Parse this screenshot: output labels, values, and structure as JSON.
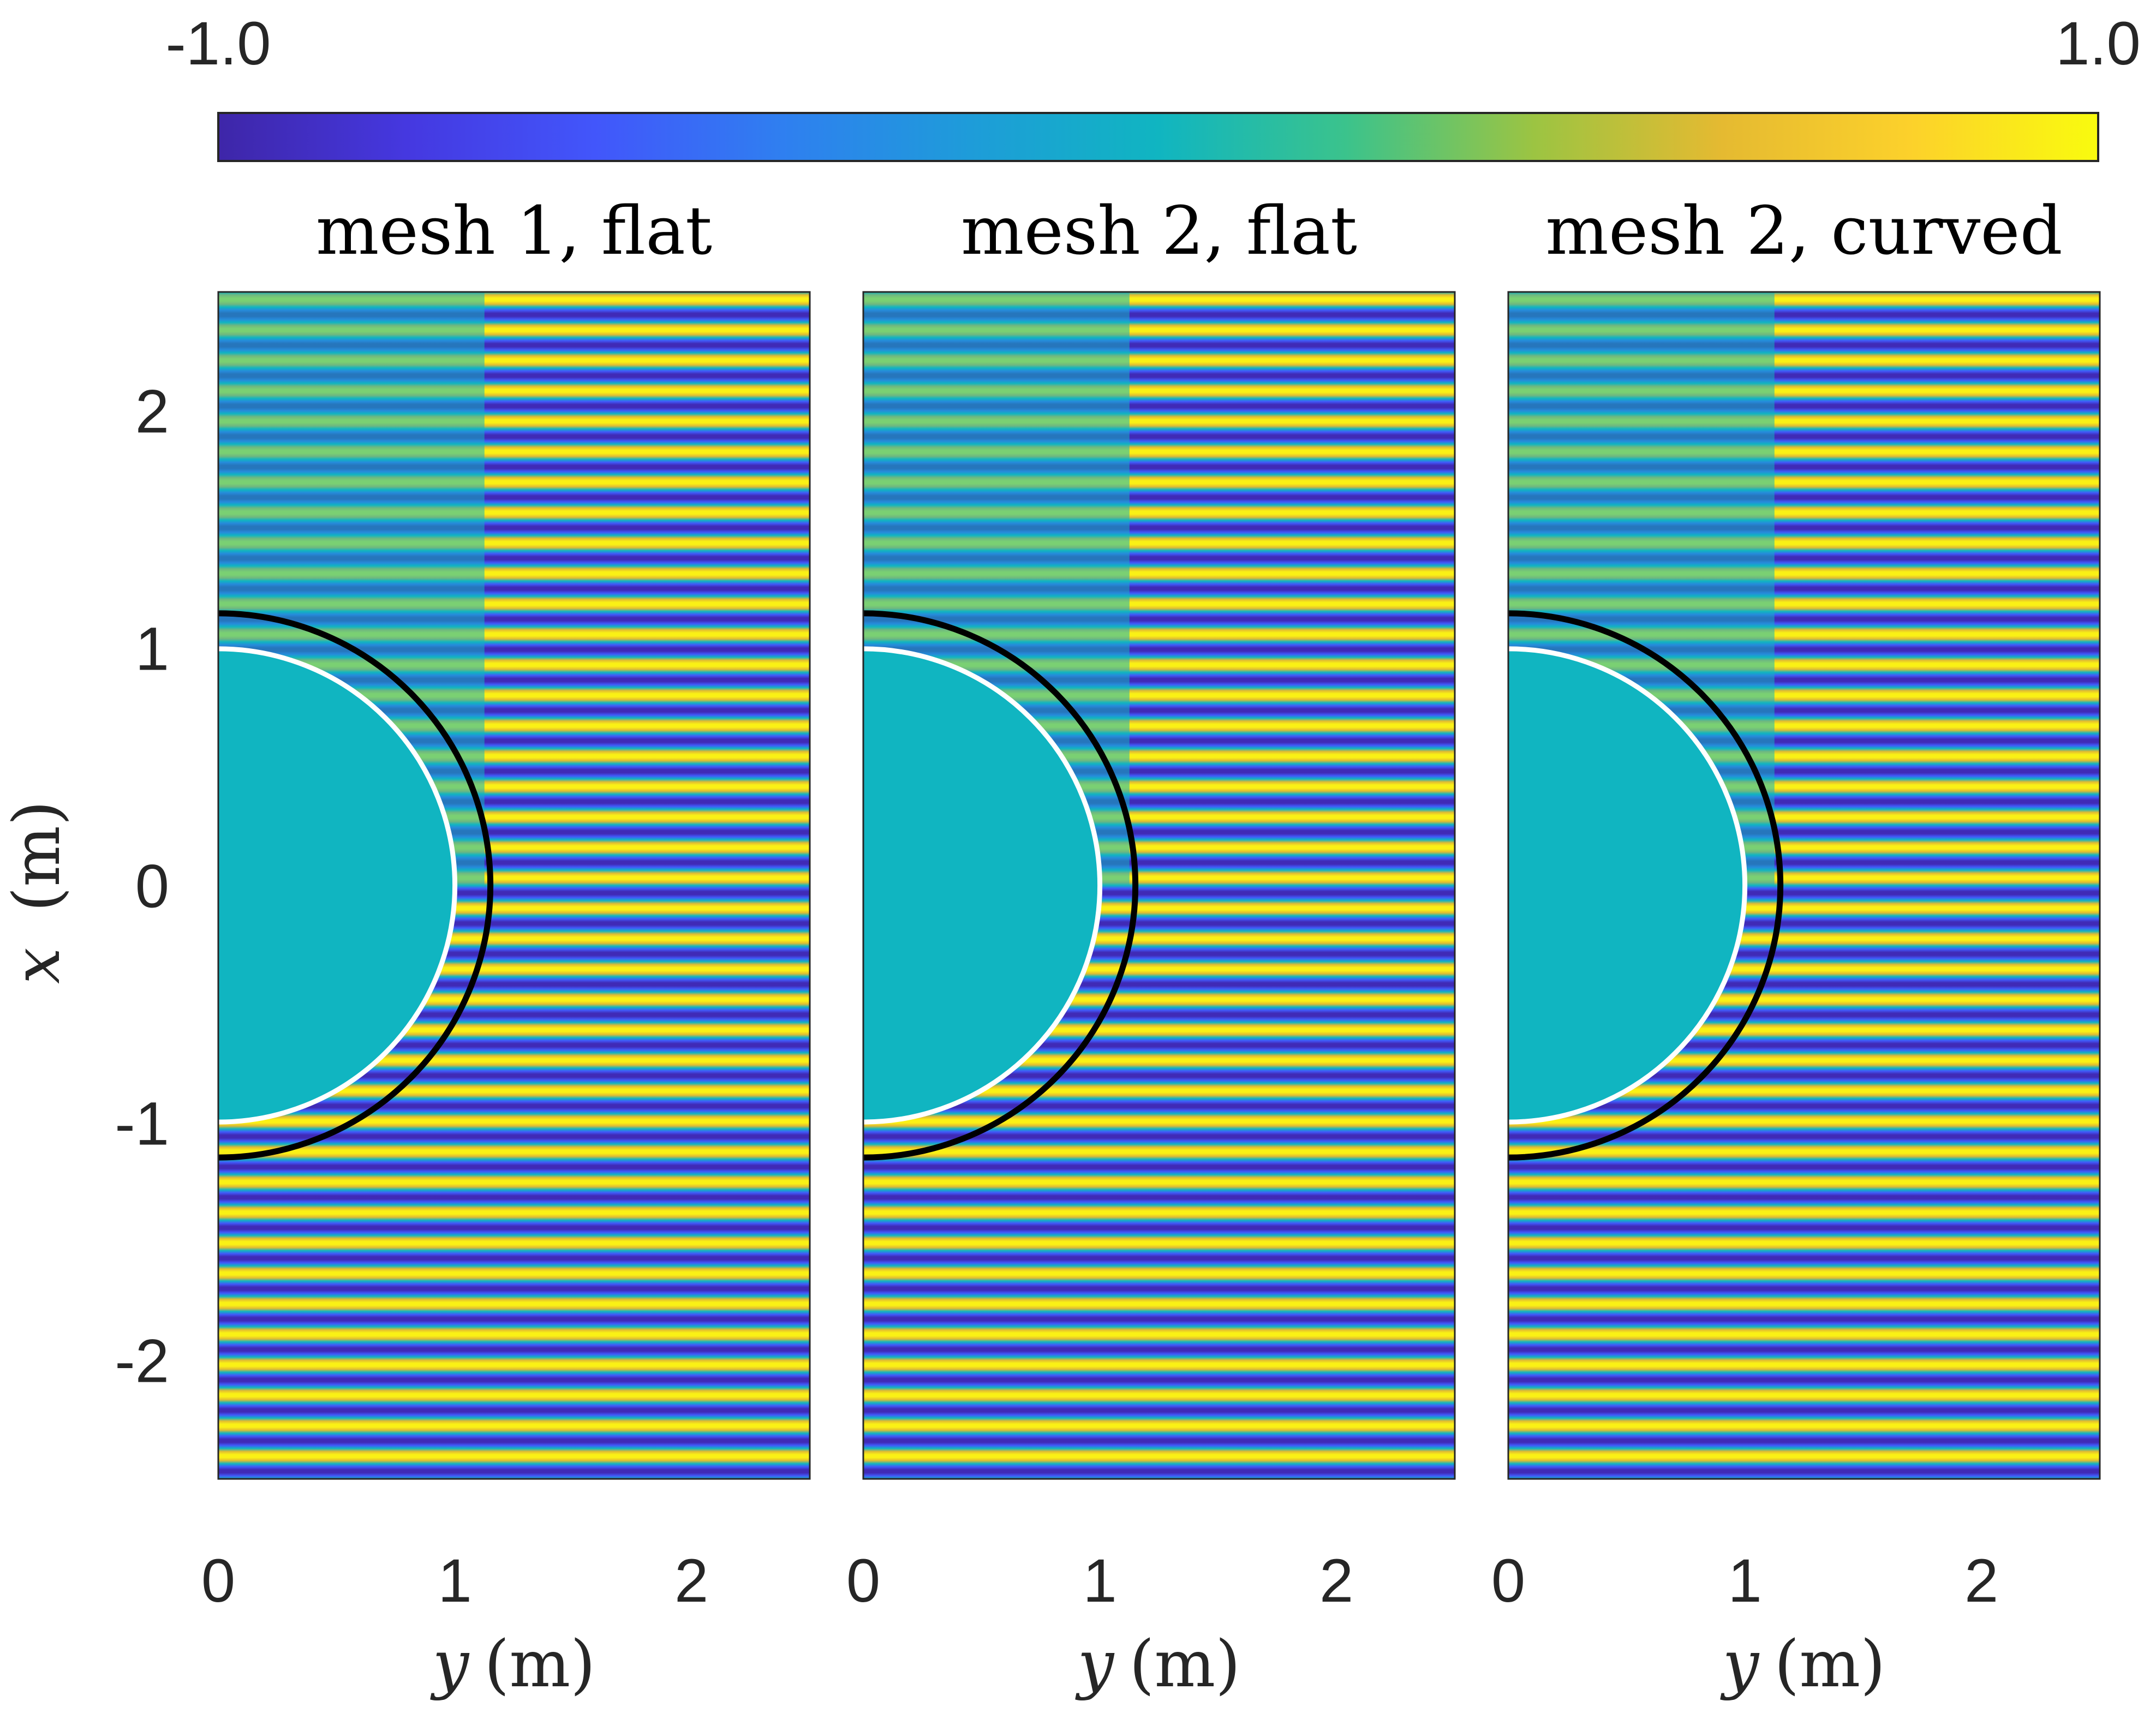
{
  "chart_data": {
    "type": "heatmap",
    "colormap": "parula",
    "colorbar": {
      "location": "top",
      "min_label": "-1.0",
      "max_label": "1.0",
      "range": [
        -1.0,
        1.0
      ]
    },
    "shared_ylabel_var": "x",
    "shared_ylabel_unit": "(m)",
    "xlabel_var": "y",
    "xlabel_unit": "(m)",
    "xlim": [
      0,
      2.5
    ],
    "ylim": [
      -2.5,
      2.5
    ],
    "x_ticks": [
      {
        "value": 0,
        "label": "0"
      },
      {
        "value": 1,
        "label": "1"
      },
      {
        "value": 2,
        "label": "2"
      }
    ],
    "y_ticks": [
      {
        "value": 2,
        "label": "2"
      },
      {
        "value": 1,
        "label": "1"
      },
      {
        "value": 0,
        "label": "0"
      },
      {
        "value": -1,
        "label": "-1"
      },
      {
        "value": -2,
        "label": "-2"
      }
    ],
    "overlay_circles": [
      {
        "radius": 1.0,
        "color": "#ffffff"
      },
      {
        "radius": 1.15,
        "color": "#000000"
      }
    ],
    "panels": [
      {
        "title": "mesh 1, flat",
        "interior_value": 0.0,
        "wave_stripes": 39
      },
      {
        "title": "mesh 2, flat",
        "interior_value": 0.0,
        "wave_stripes": 39
      },
      {
        "title": "mesh 2, curved",
        "interior_value": 0.0,
        "wave_stripes": 39
      }
    ]
  }
}
